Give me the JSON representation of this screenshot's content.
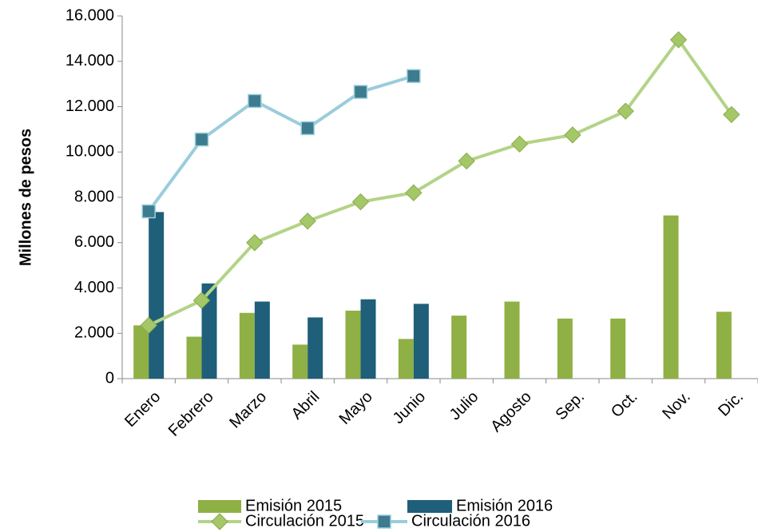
{
  "chart_data": {
    "type": "bar-line",
    "y_label": "Millones de pesos",
    "categories": [
      "Enero",
      "Febrero",
      "Marzo",
      "Abril",
      "Mayo",
      "Junio",
      "Julio",
      "Agosto",
      "Sep.",
      "Oct.",
      "Nov.",
      "Dic."
    ],
    "series": [
      {
        "name": "Emisión 2015",
        "type": "bar",
        "color": "#8fb044",
        "values": [
          2350,
          1850,
          2900,
          1500,
          3000,
          1750,
          2780,
          3400,
          2650,
          2650,
          7200,
          2950
        ]
      },
      {
        "name": "Emisión 2016",
        "type": "bar",
        "color": "#1f5f7a",
        "values": [
          7350,
          4200,
          3400,
          2700,
          3500,
          3300,
          null,
          null,
          null,
          null,
          null,
          null
        ]
      },
      {
        "name": "Circulación 2015",
        "type": "line",
        "marker": "diamond",
        "color": "#b3d387",
        "marker_color": "#a4c767",
        "values": [
          2350,
          3450,
          6000,
          6950,
          7800,
          8200,
          9600,
          10350,
          10750,
          11800,
          14950,
          11650
        ]
      },
      {
        "name": "Circulación 2016",
        "type": "line",
        "marker": "square",
        "color": "#9acddb",
        "marker_color": "#3d7c8e",
        "values": [
          7380,
          10550,
          12250,
          11050,
          12650,
          13350,
          null,
          null,
          null,
          null,
          null,
          null
        ]
      }
    ],
    "ylim": [
      0,
      16000
    ],
    "yticks": [
      0,
      {
        "value": 2000,
        "label": "2.000"
      },
      {
        "value": 4000,
        "label": "4.000"
      },
      {
        "value": 6000,
        "label": "6.000"
      },
      {
        "value": 8000,
        "label": "8.000"
      },
      {
        "value": 10000,
        "label": "10.000"
      },
      {
        "value": 12000,
        "label": "12.000"
      },
      {
        "value": 14000,
        "label": "14.000"
      },
      {
        "value": 16000,
        "label": "16.000"
      }
    ],
    "grid": false,
    "legend": "bottom"
  }
}
